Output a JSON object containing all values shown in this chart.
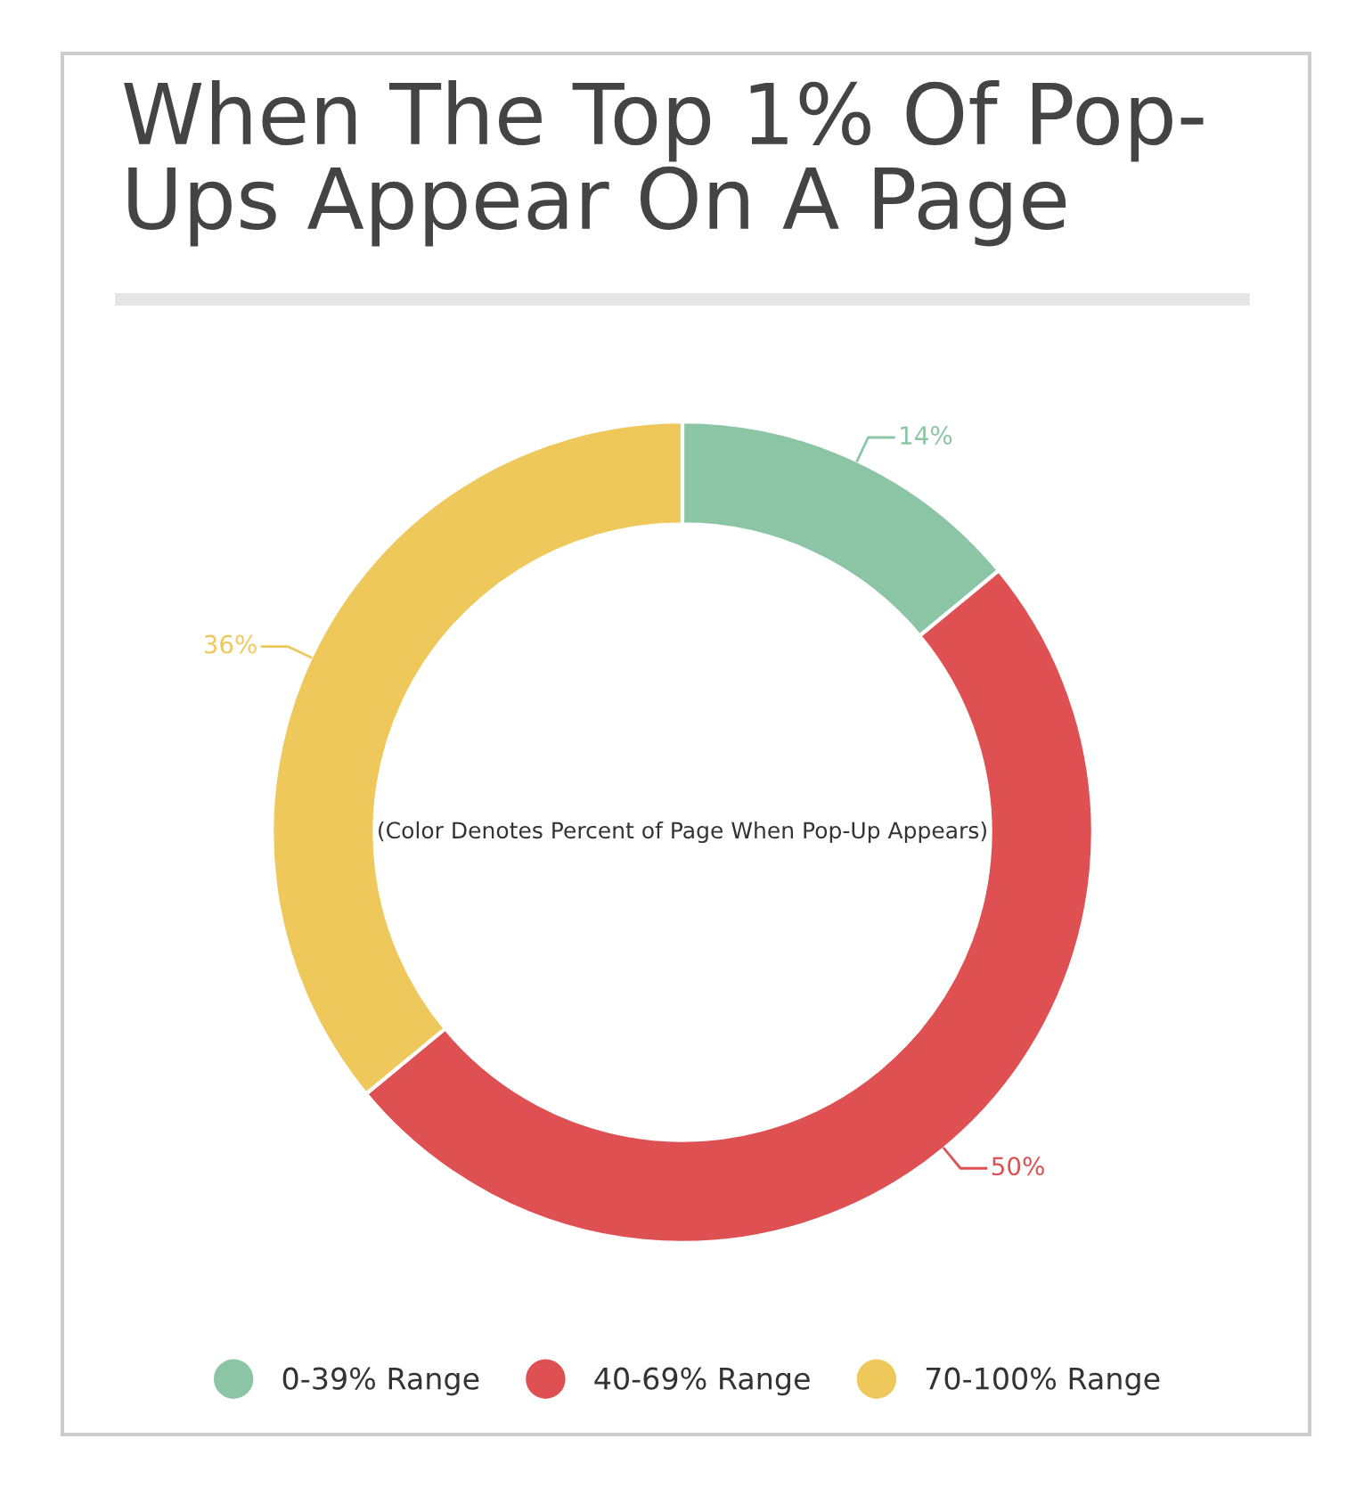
{
  "chart_data": {
    "type": "donut",
    "title": "When The Top 1% Of Pop-\nUps Appear On A Page",
    "categories": [
      "0-39% Range",
      "40-69% Range",
      "70-100% Range"
    ],
    "values": [
      14,
      50,
      36
    ],
    "colors": [
      "#8cc5a5",
      "#de5052",
      "#efc85c"
    ],
    "value_labels": [
      "14%",
      "50%",
      "36%"
    ],
    "annotations": [
      "(Color Denotes Percent of Page When Pop-Up Appears)"
    ],
    "legend": "bottom"
  }
}
